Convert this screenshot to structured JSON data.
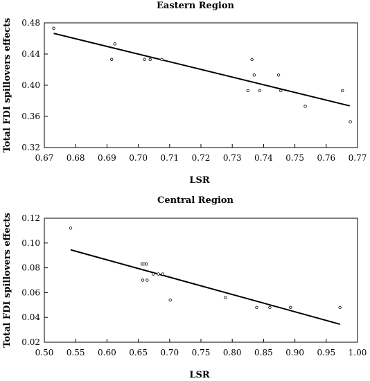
{
  "chart_data": [
    {
      "type": "scatter",
      "title": "Eastern Region",
      "xlabel": "LSR",
      "ylabel": "Total FDI spillovers effects",
      "xlim": [
        0.67,
        0.77
      ],
      "ylim": [
        0.32,
        0.48
      ],
      "x_ticks": [
        "0.67",
        "0.68",
        "0.69",
        "0.70",
        "0.71",
        "0.72",
        "0.73",
        "0.74",
        "0.75",
        "0.76",
        "0.77"
      ],
      "y_ticks": [
        "0.48",
        "0.44",
        "0.40",
        "0.36",
        "0.32"
      ],
      "grid": false,
      "points": [
        {
          "x": 0.673,
          "y": 0.473
        },
        {
          "x": 0.6915,
          "y": 0.433
        },
        {
          "x": 0.6925,
          "y": 0.453
        },
        {
          "x": 0.702,
          "y": 0.433
        },
        {
          "x": 0.7038,
          "y": 0.433
        },
        {
          "x": 0.7075,
          "y": 0.433
        },
        {
          "x": 0.735,
          "y": 0.393
        },
        {
          "x": 0.7363,
          "y": 0.433
        },
        {
          "x": 0.737,
          "y": 0.413
        },
        {
          "x": 0.7388,
          "y": 0.393
        },
        {
          "x": 0.7448,
          "y": 0.413
        },
        {
          "x": 0.7455,
          "y": 0.393
        },
        {
          "x": 0.7533,
          "y": 0.373
        },
        {
          "x": 0.7652,
          "y": 0.393
        },
        {
          "x": 0.7677,
          "y": 0.353
        }
      ],
      "fit_line": [
        {
          "x": 0.673,
          "y": 0.4665
        },
        {
          "x": 0.7675,
          "y": 0.3735
        }
      ]
    },
    {
      "type": "scatter",
      "title": "Central Region",
      "xlabel": "LSR",
      "ylabel": "Total FDI spillovers effects",
      "xlim": [
        0.5,
        1.0
      ],
      "ylim": [
        0.02,
        0.12
      ],
      "x_ticks": [
        "0.50",
        "0.55",
        "0.60",
        "0.65",
        "0.70",
        "0.75",
        "0.80",
        "0.85",
        "0.90",
        "0.95",
        "1.00"
      ],
      "y_ticks": [
        "0.12",
        "0.10",
        "0.08",
        "0.06",
        "0.04",
        "0.02"
      ],
      "grid": false,
      "points": [
        {
          "x": 0.542,
          "y": 0.112
        },
        {
          "x": 0.656,
          "y": 0.083
        },
        {
          "x": 0.659,
          "y": 0.083
        },
        {
          "x": 0.663,
          "y": 0.083
        },
        {
          "x": 0.657,
          "y": 0.07
        },
        {
          "x": 0.664,
          "y": 0.07
        },
        {
          "x": 0.674,
          "y": 0.075
        },
        {
          "x": 0.682,
          "y": 0.075
        },
        {
          "x": 0.689,
          "y": 0.075
        },
        {
          "x": 0.701,
          "y": 0.054
        },
        {
          "x": 0.789,
          "y": 0.056
        },
        {
          "x": 0.839,
          "y": 0.048
        },
        {
          "x": 0.86,
          "y": 0.048
        },
        {
          "x": 0.893,
          "y": 0.048
        },
        {
          "x": 0.972,
          "y": 0.048
        }
      ],
      "fit_line": [
        {
          "x": 0.542,
          "y": 0.0945
        },
        {
          "x": 0.972,
          "y": 0.0345
        }
      ]
    }
  ]
}
